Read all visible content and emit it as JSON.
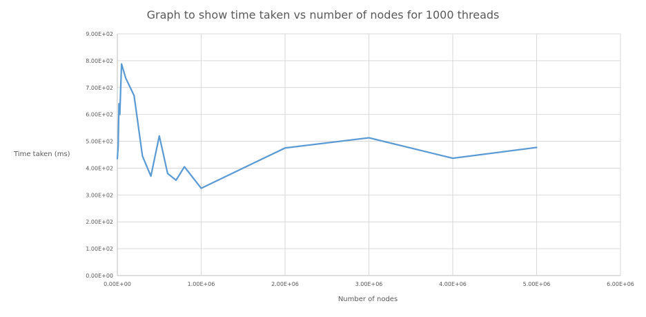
{
  "chart_data": {
    "type": "line",
    "title": "Graph to show time taken vs number of nodes for 1000 threads",
    "xlabel": "Number of nodes",
    "ylabel": "Time taken (ms)",
    "xlim": [
      0,
      6000000
    ],
    "ylim": [
      0,
      900
    ],
    "x_ticks": [
      0,
      1000000,
      2000000,
      3000000,
      4000000,
      5000000,
      6000000
    ],
    "x_tick_labels": [
      "0.00E+00",
      "1.00E+06",
      "2.00E+06",
      "3.00E+06",
      "4.00E+06",
      "5.00E+06",
      "6.00E+06"
    ],
    "y_ticks": [
      0,
      100,
      200,
      300,
      400,
      500,
      600,
      700,
      800,
      900
    ],
    "y_tick_labels": [
      "0.00E+00",
      "1.00E+02",
      "2.00E+02",
      "3.00E+02",
      "4.00E+02",
      "5.00E+02",
      "6.00E+02",
      "7.00E+02",
      "8.00E+02",
      "9.00E+02"
    ],
    "grid": true,
    "legend": "none",
    "series": [
      {
        "color": "#5b9bd5",
        "x": [
          0,
          10000,
          20000,
          30000,
          50000,
          100000,
          200000,
          300000,
          400000,
          500000,
          600000,
          700000,
          800000,
          1000000,
          2000000,
          3000000,
          4000000,
          5000000
        ],
        "y": [
          435,
          480,
          640,
          600,
          788,
          735,
          670,
          445,
          370,
          520,
          380,
          355,
          405,
          325,
          475,
          513,
          437,
          477
        ]
      }
    ]
  }
}
